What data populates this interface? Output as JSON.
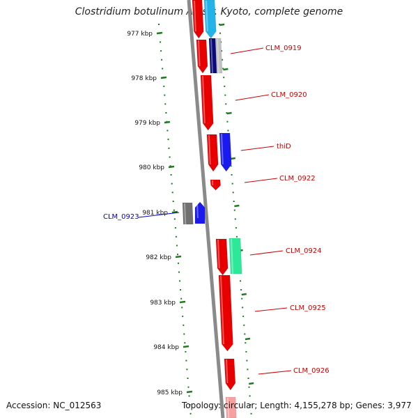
{
  "title": "Clostridium botulinum A2 str. Kyoto, complete genome",
  "footer": {
    "accession": "Accession: NC_012563",
    "summary": "Topology: circular; Length: 4,155,278 bp; Genes: 3,977"
  },
  "colors": {
    "backbone": "#8a8a8a",
    "tick": "#1f7a1f",
    "red_label": "#cc0000",
    "blue_label": "#0000cc"
  },
  "ticks": [
    "977 kbp",
    "978 kbp",
    "979 kbp",
    "980 kbp",
    "981 kbp",
    "982 kbp",
    "983 kbp",
    "984 kbp",
    "985 kbp"
  ],
  "gene_labels": [
    {
      "text": "CLM_0919",
      "color": "red"
    },
    {
      "text": "CLM_0920",
      "color": "red"
    },
    {
      "text": "thiD",
      "color": "red"
    },
    {
      "text": "CLM_0922",
      "color": "red"
    },
    {
      "text": "CLM_0923",
      "color": "blue"
    },
    {
      "text": "CLM_0924",
      "color": "red"
    },
    {
      "text": "CLM_0925",
      "color": "red"
    },
    {
      "text": "CLM_0926",
      "color": "red"
    }
  ],
  "features": [
    {
      "name": "gene-arrow",
      "color": "#e80000"
    },
    {
      "name": "cds-arrow",
      "color": "#22b4e8"
    },
    {
      "name": "gene-arrow",
      "color": "#e80000"
    },
    {
      "name": "cds-arrow",
      "color": "#0a0a7a"
    },
    {
      "name": "misc-feature",
      "color": "#c0c0c0"
    },
    {
      "name": "gene-arrow",
      "color": "#e80000"
    },
    {
      "name": "gene-arrow",
      "color": "#e80000"
    },
    {
      "name": "cds-arrow",
      "color": "#1a1aee"
    },
    {
      "name": "gene-arrow",
      "color": "#e80000"
    },
    {
      "name": "gene-arrow",
      "color": "#707070"
    },
    {
      "name": "cds-arrow",
      "color": "#1a1aee"
    },
    {
      "name": "gene-arrow",
      "color": "#e80000"
    },
    {
      "name": "cds-arrow",
      "color": "#2ee89a"
    },
    {
      "name": "gene-arrow",
      "color": "#e80000"
    },
    {
      "name": "gene-arrow",
      "color": "#e80000"
    },
    {
      "name": "gene-arrow",
      "color": "#f6a0a0"
    }
  ]
}
